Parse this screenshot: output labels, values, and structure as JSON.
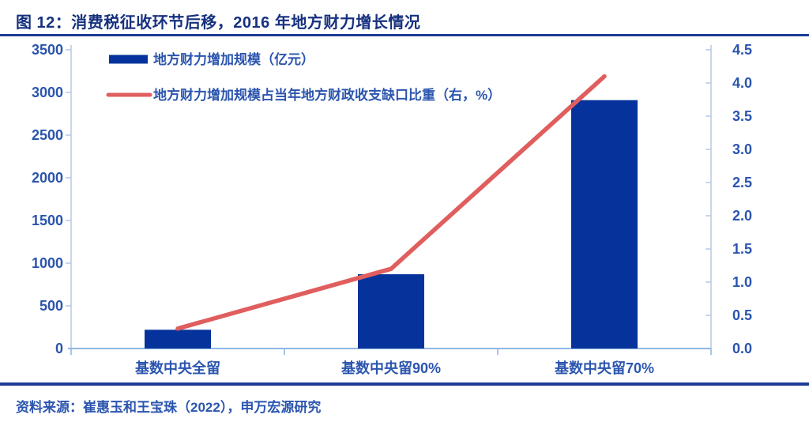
{
  "header": {
    "title": "图 12：消费税征收环节后移，2016 年地方财力增长情况"
  },
  "footer": {
    "source": "资料来源：崔惠玉和王宝珠（2022），申万宏源研究"
  },
  "colors": {
    "title_text": "#16317F",
    "rule": "#1E3C96",
    "axis_text": "#2B55AE",
    "axis_line_vertical": "#B9CDE4",
    "axis_line_bottom": "#8FB8E4",
    "bar": "#06339B",
    "line": "#E05E5E"
  },
  "chart_data": {
    "type": "bar",
    "subtype": "bar+line dual-axis",
    "categories": [
      "基数中央全留",
      "基数中央留90%",
      "基数中央留70%"
    ],
    "series": [
      {
        "name": "地方财力增加规模（亿元）",
        "type": "bar",
        "axis": "left",
        "color": "#06339B",
        "values": [
          220,
          870,
          2910
        ]
      },
      {
        "name": "地方财力增加规模占当年地方财政收支缺口比重（右，%）",
        "type": "line",
        "axis": "right",
        "color": "#E05E5E",
        "values": [
          0.3,
          1.2,
          4.1
        ]
      }
    ],
    "left_axis": {
      "min": 0,
      "max": 3500,
      "step": 500,
      "decimals": 0
    },
    "right_axis": {
      "min": 0,
      "max": 4.5,
      "step": 0.5,
      "decimals": 1
    },
    "grid": false,
    "legend_position": "top-left"
  }
}
